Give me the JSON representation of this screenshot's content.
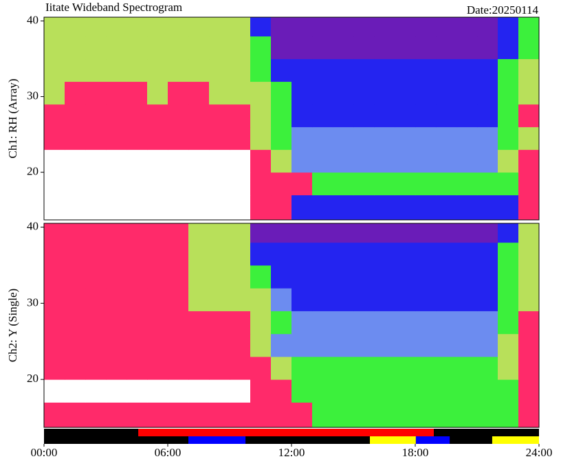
{
  "chart_data": {
    "type": "heatmap",
    "title": "Iitate Wideband Spectrogram",
    "date": "Date:20250114",
    "xlim": [
      0,
      24
    ],
    "xticks": [
      {
        "value": 0,
        "label": "00:00"
      },
      {
        "value": 6,
        "label": "06:00"
      },
      {
        "value": 12,
        "label": "12:00"
      },
      {
        "value": 18,
        "label": "18:00"
      },
      {
        "value": 24,
        "label": "24:00"
      }
    ],
    "x_edges": [
      0,
      1,
      2,
      3,
      4,
      5,
      6,
      7,
      8,
      9,
      10,
      11,
      12,
      13,
      14,
      15,
      16,
      17,
      18,
      19,
      20,
      21,
      22,
      23,
      24
    ],
    "y_edges": [
      13.7,
      17,
      20,
      23,
      26,
      29,
      32,
      35,
      38,
      40.5
    ],
    "colormap": [
      "#ffffff",
      "#ff2a6a",
      "#b8e05a",
      "#3cf03c",
      "#6c8cf0",
      "#2424f0",
      "#6a1cb8"
    ],
    "panels": [
      {
        "ylabel": "Ch1: RH (Array)",
        "ylim": [
          13.7,
          40.5
        ],
        "yticks": [
          20,
          30,
          40
        ],
        "z": [
          [
            0,
            0,
            0,
            0,
            0,
            0,
            0,
            0,
            0,
            0,
            1,
            1,
            5,
            5,
            5,
            5,
            5,
            5,
            5,
            5,
            5,
            5,
            5,
            1
          ],
          [
            0,
            0,
            0,
            0,
            0,
            0,
            0,
            0,
            0,
            0,
            1,
            1,
            1,
            3,
            3,
            3,
            3,
            3,
            3,
            3,
            3,
            3,
            3,
            1
          ],
          [
            0,
            0,
            0,
            0,
            0,
            0,
            0,
            0,
            0,
            0,
            1,
            2,
            4,
            4,
            4,
            4,
            4,
            4,
            4,
            4,
            4,
            4,
            2,
            1
          ],
          [
            1,
            1,
            1,
            1,
            1,
            1,
            1,
            1,
            1,
            1,
            2,
            3,
            4,
            4,
            4,
            4,
            4,
            4,
            4,
            4,
            4,
            4,
            3,
            2
          ],
          [
            1,
            1,
            1,
            1,
            1,
            1,
            1,
            1,
            1,
            1,
            2,
            3,
            5,
            5,
            5,
            5,
            5,
            5,
            5,
            5,
            5,
            5,
            3,
            1
          ],
          [
            2,
            1,
            1,
            1,
            1,
            2,
            1,
            1,
            2,
            2,
            2,
            3,
            5,
            5,
            5,
            5,
            5,
            5,
            5,
            5,
            5,
            5,
            3,
            2
          ],
          [
            2,
            2,
            2,
            2,
            2,
            2,
            2,
            2,
            2,
            2,
            3,
            5,
            5,
            5,
            5,
            5,
            5,
            5,
            5,
            5,
            5,
            5,
            3,
            2
          ],
          [
            2,
            2,
            2,
            2,
            2,
            2,
            2,
            2,
            2,
            2,
            3,
            6,
            6,
            6,
            6,
            6,
            6,
            6,
            6,
            6,
            6,
            6,
            5,
            3
          ],
          [
            2,
            2,
            2,
            2,
            2,
            2,
            2,
            2,
            2,
            2,
            5,
            6,
            6,
            6,
            6,
            6,
            6,
            6,
            6,
            6,
            6,
            6,
            5,
            3
          ]
        ]
      },
      {
        "ylabel": "Ch2: Y (Single)",
        "ylim": [
          13.7,
          40.5
        ],
        "yticks": [
          20,
          30,
          40
        ],
        "z": [
          [
            1,
            1,
            1,
            1,
            1,
            1,
            1,
            1,
            1,
            1,
            1,
            1,
            1,
            3,
            3,
            3,
            3,
            3,
            3,
            3,
            3,
            3,
            3,
            1
          ],
          [
            0,
            0,
            0,
            0,
            0,
            0,
            0,
            0,
            0,
            0,
            1,
            1,
            3,
            3,
            3,
            3,
            3,
            3,
            3,
            3,
            3,
            3,
            3,
            1
          ],
          [
            1,
            1,
            1,
            1,
            1,
            1,
            1,
            1,
            1,
            1,
            1,
            2,
            3,
            3,
            3,
            3,
            3,
            3,
            3,
            3,
            3,
            3,
            2,
            1
          ],
          [
            1,
            1,
            1,
            1,
            1,
            1,
            1,
            1,
            1,
            1,
            2,
            4,
            4,
            4,
            4,
            4,
            4,
            4,
            4,
            4,
            4,
            4,
            2,
            1
          ],
          [
            1,
            1,
            1,
            1,
            1,
            1,
            1,
            1,
            1,
            1,
            2,
            3,
            4,
            4,
            4,
            4,
            4,
            4,
            4,
            4,
            4,
            4,
            3,
            1
          ],
          [
            1,
            1,
            1,
            1,
            1,
            1,
            1,
            2,
            2,
            2,
            2,
            4,
            5,
            5,
            5,
            5,
            5,
            5,
            5,
            5,
            5,
            5,
            3,
            2
          ],
          [
            1,
            1,
            1,
            1,
            1,
            1,
            1,
            2,
            2,
            2,
            3,
            5,
            5,
            5,
            5,
            5,
            5,
            5,
            5,
            5,
            5,
            5,
            3,
            2
          ],
          [
            1,
            1,
            1,
            1,
            1,
            1,
            1,
            2,
            2,
            2,
            5,
            5,
            5,
            5,
            5,
            5,
            5,
            5,
            5,
            5,
            5,
            5,
            3,
            2
          ],
          [
            1,
            1,
            1,
            1,
            1,
            1,
            1,
            2,
            2,
            2,
            6,
            6,
            6,
            6,
            6,
            6,
            6,
            6,
            6,
            6,
            6,
            6,
            5,
            2
          ]
        ]
      }
    ],
    "status": {
      "background": "#000000",
      "upper": [
        {
          "color": "#ff0000",
          "start": 4.57,
          "end": 18.9
        }
      ],
      "lower": [
        {
          "color": "#0000ff",
          "start": 7.0,
          "end": 9.77
        },
        {
          "color": "#ffff00",
          "start": 15.8,
          "end": 18.03
        },
        {
          "color": "#0000ff",
          "start": 18.03,
          "end": 19.67
        },
        {
          "color": "#ffff00",
          "start": 21.73,
          "end": 24
        }
      ]
    }
  }
}
